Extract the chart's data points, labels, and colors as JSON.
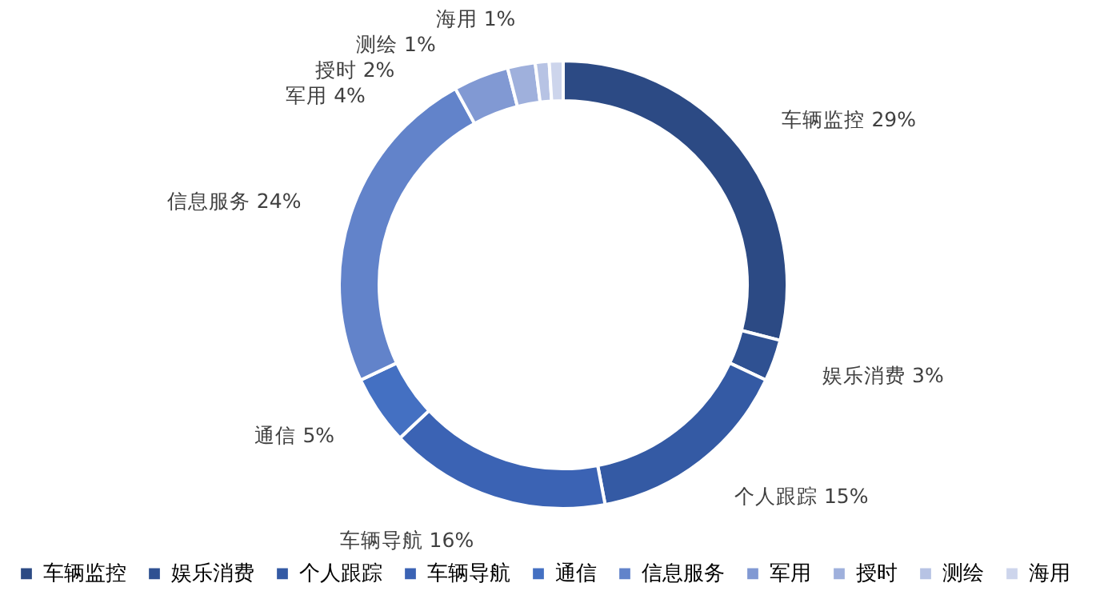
{
  "chart_data": {
    "type": "donut",
    "categories": [
      "车辆监控",
      "娱乐消费",
      "个人跟踪",
      "车辆导航",
      "通信",
      "信息服务",
      "军用",
      "授时",
      "测绘",
      "海用"
    ],
    "values": [
      29,
      3,
      15,
      16,
      5,
      24,
      4,
      2,
      1,
      1
    ],
    "value_labels": [
      "29%",
      "3%",
      "15%",
      "16%",
      "5%",
      "24%",
      "4%",
      "2%",
      "1%",
      "1%"
    ],
    "colors": [
      "#2c4a84",
      "#2f5192",
      "#345aa4",
      "#3b63b4",
      "#4470c2",
      "#6283ca",
      "#8199d3",
      "#9fb0dc",
      "#b7c3e4",
      "#cdd5ec"
    ],
    "legend": "bottom"
  }
}
